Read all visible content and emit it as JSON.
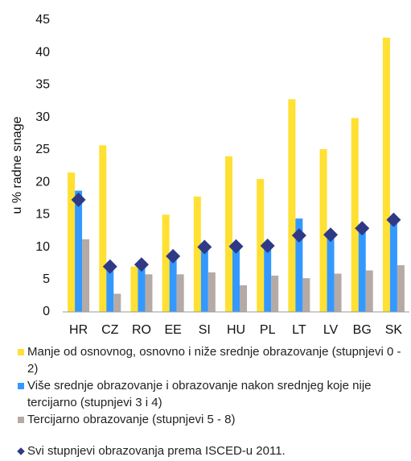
{
  "chart_data": {
    "type": "bar",
    "y_label": "u % radne snage",
    "categories": [
      "HR",
      "CZ",
      "RO",
      "EE",
      "SI",
      "HU",
      "PL",
      "LT",
      "LV",
      "BG",
      "SK"
    ],
    "series": [
      {
        "name": "Manje od osnovnog, osnovno i niže srednje obrazovanje (stupnjevi 0 - 2)",
        "color": "#ffe033",
        "values": [
          21.5,
          25.7,
          7.0,
          15.0,
          17.8,
          24.0,
          20.5,
          32.8,
          25.1,
          29.9,
          42.3
        ]
      },
      {
        "name": "Više srednje obrazovanje i obrazovanje nakon srednjeg koje nije tercijarno (stupnjevi 3 i 4)",
        "color": "#3399ff",
        "values": [
          18.7,
          7.3,
          7.8,
          8.8,
          10.3,
          10.5,
          10.5,
          14.4,
          12.1,
          13.2,
          14.3
        ]
      },
      {
        "name": "Tercijarno obrazovanje (stupnjevi 5 - 8)",
        "color": "#b5aaa5",
        "values": [
          11.2,
          2.8,
          5.8,
          5.8,
          6.1,
          4.1,
          5.6,
          5.2,
          5.9,
          6.4,
          7.2
        ]
      },
      {
        "name": "Svi stupnjevi obrazovanja prema ISCED-u 2011.",
        "color": "#2e3a87",
        "type": "scatter",
        "values": [
          17.3,
          7.0,
          7.3,
          8.6,
          10.0,
          10.1,
          10.2,
          11.8,
          11.9,
          12.9,
          14.2
        ]
      }
    ],
    "ylim": [
      0,
      45
    ],
    "yticks": [
      0,
      5,
      10,
      15,
      20,
      25,
      30,
      35,
      40,
      45
    ],
    "grid": false
  }
}
